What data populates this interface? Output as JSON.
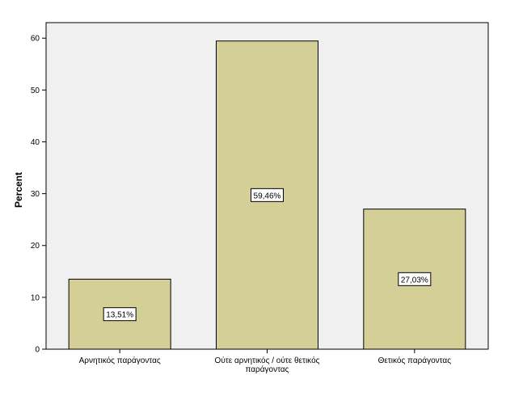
{
  "chart_data": {
    "type": "bar",
    "categories": [
      [
        "Αρνητικός παράγοντας"
      ],
      [
        "Ούτε αρνητικός / ούτε θετικός",
        "παράγοντας"
      ],
      [
        "Θετικός παράγοντας"
      ]
    ],
    "values": [
      13.51,
      59.46,
      27.03
    ],
    "data_labels": [
      "13,51%",
      "59,46%",
      "27,03%"
    ],
    "ylabel": "Percent",
    "ylim": [
      0,
      63
    ],
    "yticks": [
      0,
      10,
      20,
      30,
      40,
      50,
      60
    ],
    "grid": false,
    "legend": "none",
    "colors": {
      "bar_fill": "#d4cf96",
      "bar_stroke": "#000000",
      "plot_background": "#f0f0f0",
      "page_background": "#ffffff"
    }
  }
}
